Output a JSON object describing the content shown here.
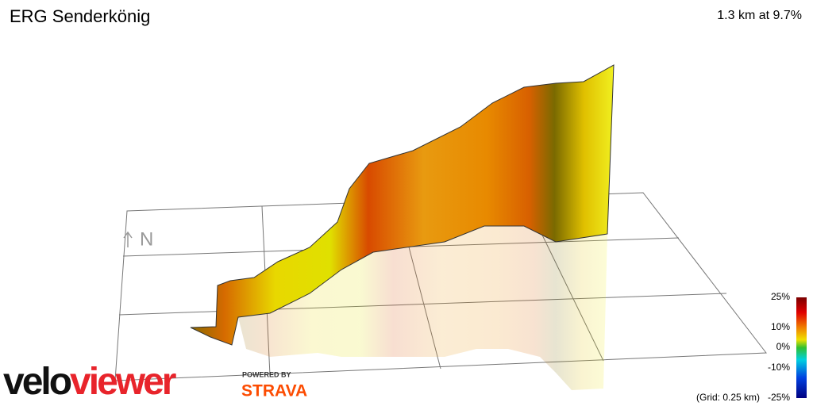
{
  "header": {
    "title": "ERG Senderkönig",
    "summary": "1.3 km at 9.7%"
  },
  "compass": "N",
  "legend": {
    "labels": [
      "25%",
      "10%",
      "0%",
      "-10%",
      "-25%"
    ],
    "grid_note": "(Grid: 0.25 km)"
  },
  "branding": {
    "logo_dark": "velo",
    "logo_red": "viewer",
    "powered_by": "POWERED BY",
    "partner": "STRAVA"
  }
}
